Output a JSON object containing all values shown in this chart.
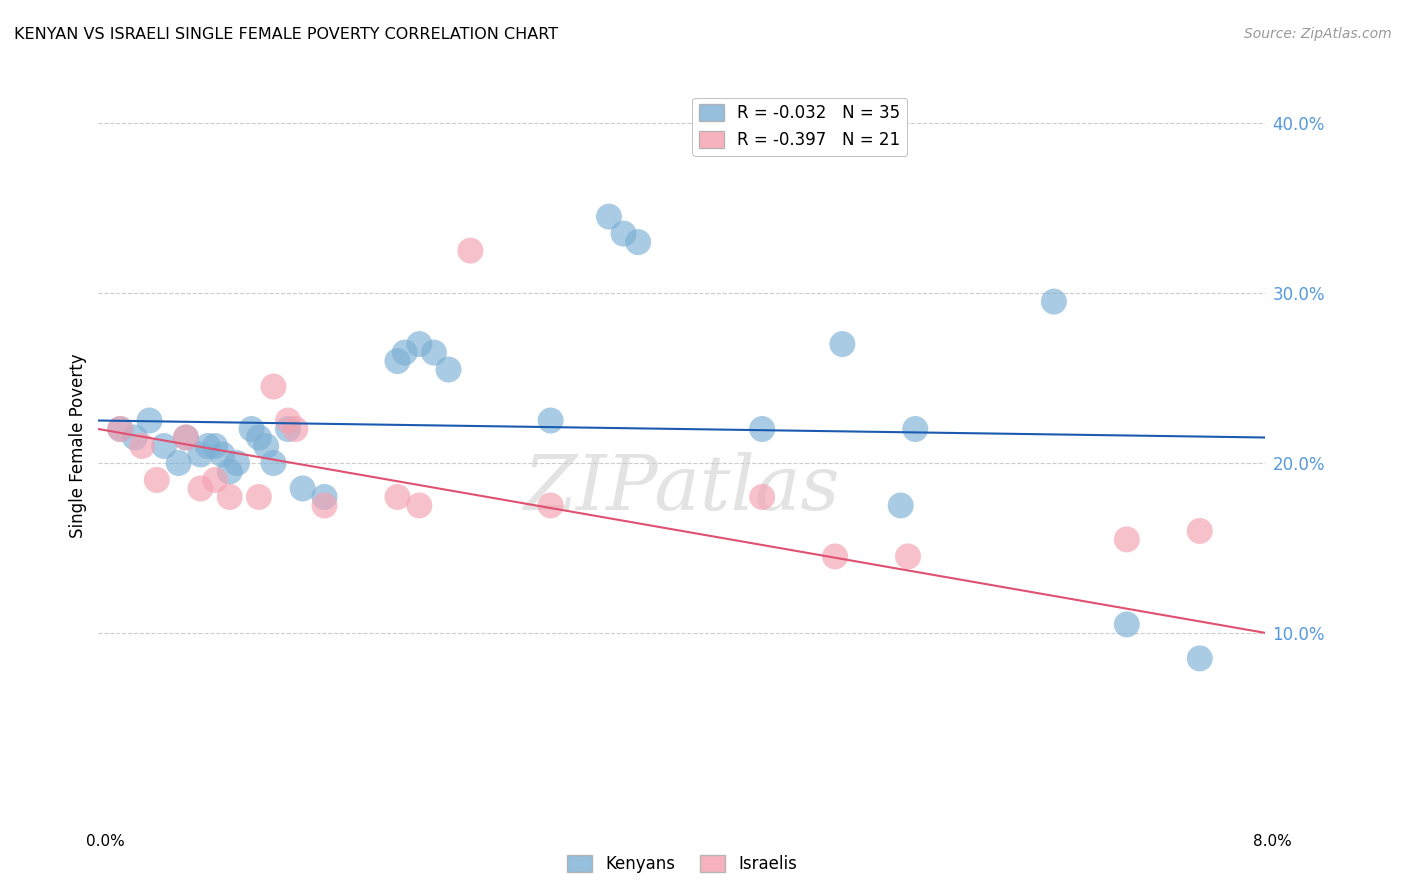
{
  "title": "KENYAN VS ISRAELI SINGLE FEMALE POVERTY CORRELATION CHART",
  "source": "Source: ZipAtlas.com",
  "ylabel": "Single Female Poverty",
  "xlim": [
    0.0,
    8.0
  ],
  "ylim": [
    0.0,
    42.0
  ],
  "yticks": [
    10.0,
    20.0,
    30.0,
    40.0
  ],
  "ytick_labels": [
    "10.0%",
    "20.0%",
    "30.0%",
    "40.0%"
  ],
  "legend_kenyan": "R = -0.032   N = 35",
  "legend_israeli": "R = -0.397   N = 21",
  "kenyan_color": "#7BAFD4",
  "israeli_color": "#F4A0B0",
  "trendline_kenyan_color": "#1A5BB0",
  "trendline_israeli_color": "#E05070",
  "background_color": "#FFFFFF",
  "grid_color": "#CCCCCC",
  "watermark": "ZIPatlas",
  "kenyan_x": [
    0.15,
    0.25,
    0.35,
    0.45,
    0.55,
    0.6,
    0.7,
    0.75,
    0.8,
    0.85,
    0.9,
    0.95,
    1.05,
    1.1,
    1.15,
    1.2,
    1.3,
    1.4,
    1.55,
    2.05,
    2.1,
    2.2,
    2.3,
    2.4,
    3.1,
    3.5,
    3.6,
    3.7,
    4.55,
    5.1,
    5.5,
    5.6,
    6.55,
    7.05,
    7.55
  ],
  "kenyan_y": [
    22.0,
    21.5,
    22.5,
    21.0,
    20.0,
    21.5,
    20.5,
    21.0,
    21.0,
    20.5,
    19.5,
    20.0,
    22.0,
    21.5,
    21.0,
    20.0,
    22.0,
    18.5,
    18.0,
    26.0,
    26.5,
    27.0,
    26.5,
    25.5,
    22.5,
    34.5,
    33.5,
    33.0,
    22.0,
    27.0,
    17.5,
    22.0,
    29.5,
    10.5,
    8.5
  ],
  "israeli_x": [
    0.15,
    0.3,
    0.4,
    0.6,
    0.7,
    0.8,
    0.9,
    1.1,
    1.2,
    1.3,
    1.35,
    1.55,
    2.05,
    2.2,
    2.55,
    3.1,
    4.55,
    5.05,
    5.55,
    7.05,
    7.55
  ],
  "israeli_y": [
    22.0,
    21.0,
    19.0,
    21.5,
    18.5,
    19.0,
    18.0,
    18.0,
    24.5,
    22.5,
    22.0,
    17.5,
    18.0,
    17.5,
    32.5,
    17.5,
    18.0,
    14.5,
    14.5,
    15.5,
    16.0
  ],
  "kenyan_trendline_x": [
    0.0,
    8.0
  ],
  "kenyan_trendline_y": [
    22.5,
    21.5
  ],
  "israeli_trendline_x": [
    0.0,
    8.0
  ],
  "israeli_trendline_y": [
    22.0,
    10.0
  ]
}
